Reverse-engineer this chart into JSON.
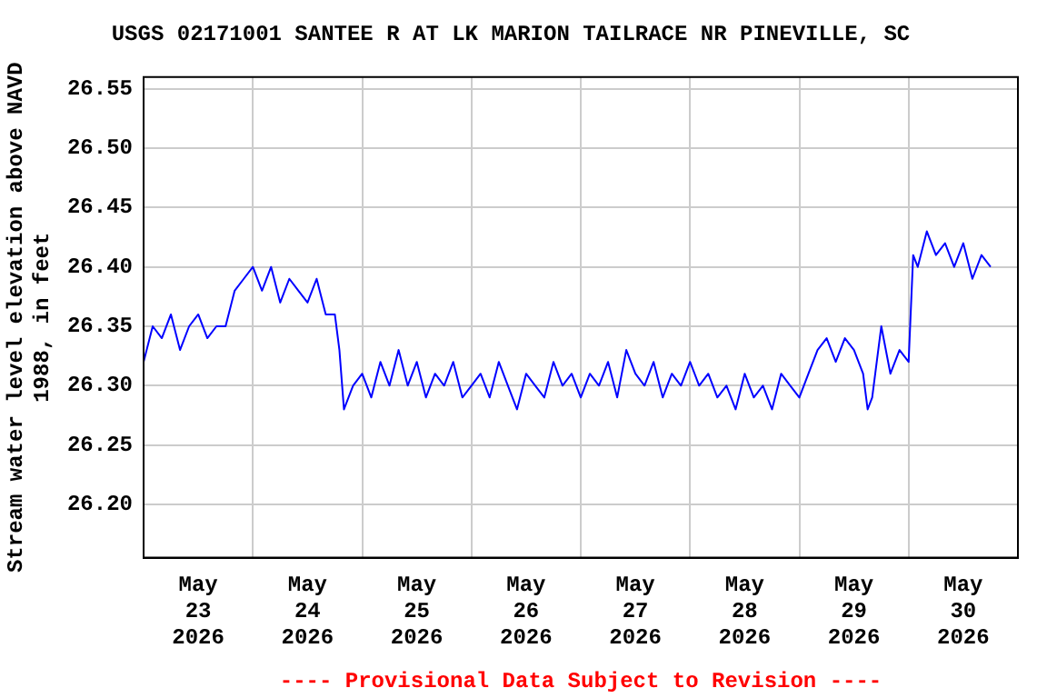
{
  "chart_data": {
    "type": "line",
    "title": "USGS 02171001 SANTEE R AT LK MARION TAILRACE NR PINEVILLE, SC",
    "ylabel": "Stream water level elevation above NAVD\n1988, in feet",
    "annotations": [
      "---- Provisional Data Subject to Revision ----"
    ],
    "x": [
      "2026-05-23T00:00",
      "2026-05-23T02:00",
      "2026-05-23T04:00",
      "2026-05-23T06:00",
      "2026-05-23T08:00",
      "2026-05-23T10:00",
      "2026-05-23T12:00",
      "2026-05-23T14:00",
      "2026-05-23T16:00",
      "2026-05-23T18:00",
      "2026-05-23T20:00",
      "2026-05-23T22:00",
      "2026-05-24T00:00",
      "2026-05-24T02:00",
      "2026-05-24T04:00",
      "2026-05-24T06:00",
      "2026-05-24T08:00",
      "2026-05-24T10:00",
      "2026-05-24T12:00",
      "2026-05-24T14:00",
      "2026-05-24T16:00",
      "2026-05-24T18:00",
      "2026-05-24T19:00",
      "2026-05-24T20:00",
      "2026-05-24T22:00",
      "2026-05-25T00:00",
      "2026-05-25T02:00",
      "2026-05-25T04:00",
      "2026-05-25T06:00",
      "2026-05-25T08:00",
      "2026-05-25T10:00",
      "2026-05-25T12:00",
      "2026-05-25T14:00",
      "2026-05-25T16:00",
      "2026-05-25T18:00",
      "2026-05-25T20:00",
      "2026-05-25T22:00",
      "2026-05-26T00:00",
      "2026-05-26T02:00",
      "2026-05-26T04:00",
      "2026-05-26T06:00",
      "2026-05-26T08:00",
      "2026-05-26T10:00",
      "2026-05-26T12:00",
      "2026-05-26T14:00",
      "2026-05-26T16:00",
      "2026-05-26T18:00",
      "2026-05-26T20:00",
      "2026-05-26T22:00",
      "2026-05-27T00:00",
      "2026-05-27T02:00",
      "2026-05-27T04:00",
      "2026-05-27T06:00",
      "2026-05-27T08:00",
      "2026-05-27T10:00",
      "2026-05-27T12:00",
      "2026-05-27T14:00",
      "2026-05-27T16:00",
      "2026-05-27T18:00",
      "2026-05-27T20:00",
      "2026-05-27T22:00",
      "2026-05-28T00:00",
      "2026-05-28T02:00",
      "2026-05-28T04:00",
      "2026-05-28T06:00",
      "2026-05-28T08:00",
      "2026-05-28T10:00",
      "2026-05-28T12:00",
      "2026-05-28T14:00",
      "2026-05-28T16:00",
      "2026-05-28T18:00",
      "2026-05-28T20:00",
      "2026-05-28T22:00",
      "2026-05-29T00:00",
      "2026-05-29T02:00",
      "2026-05-29T04:00",
      "2026-05-29T06:00",
      "2026-05-29T08:00",
      "2026-05-29T10:00",
      "2026-05-29T12:00",
      "2026-05-29T14:00",
      "2026-05-29T15:00",
      "2026-05-29T16:00",
      "2026-05-29T18:00",
      "2026-05-29T20:00",
      "2026-05-29T22:00",
      "2026-05-30T00:00",
      "2026-05-30T01:00",
      "2026-05-30T02:00",
      "2026-05-30T04:00",
      "2026-05-30T06:00",
      "2026-05-30T08:00",
      "2026-05-30T10:00",
      "2026-05-30T12:00",
      "2026-05-30T14:00",
      "2026-05-30T16:00",
      "2026-05-30T18:00"
    ],
    "series": [
      {
        "color": "#0000ff",
        "values": [
          26.32,
          26.35,
          26.34,
          26.36,
          26.33,
          26.35,
          26.36,
          26.34,
          26.35,
          26.35,
          26.38,
          26.39,
          26.4,
          26.38,
          26.4,
          26.37,
          26.39,
          26.38,
          26.37,
          26.39,
          26.36,
          26.36,
          26.33,
          26.28,
          26.3,
          26.31,
          26.29,
          26.32,
          26.3,
          26.33,
          26.3,
          26.32,
          26.29,
          26.31,
          26.3,
          26.32,
          26.29,
          26.3,
          26.31,
          26.29,
          26.32,
          26.3,
          26.28,
          26.31,
          26.3,
          26.29,
          26.32,
          26.3,
          26.31,
          26.29,
          26.31,
          26.3,
          26.32,
          26.29,
          26.33,
          26.31,
          26.3,
          26.32,
          26.29,
          26.31,
          26.3,
          26.32,
          26.3,
          26.31,
          26.29,
          26.3,
          26.28,
          26.31,
          26.29,
          26.3,
          26.28,
          26.31,
          26.3,
          26.29,
          26.31,
          26.33,
          26.34,
          26.32,
          26.34,
          26.33,
          26.31,
          26.28,
          26.29,
          26.35,
          26.31,
          26.33,
          26.32,
          26.41,
          26.4,
          26.43,
          26.41,
          26.42,
          26.4,
          26.42,
          26.39,
          26.41,
          26.4
        ]
      }
    ],
    "xlim": [
      "2026-05-23T00:00",
      "2026-05-31T00:00"
    ],
    "xticks": [
      {
        "value": "2026-05-23T12:00",
        "label": "May\n23\n2026"
      },
      {
        "value": "2026-05-24T00:00",
        "label": null
      },
      {
        "value": "2026-05-24T12:00",
        "label": "May\n24\n2026"
      },
      {
        "value": "2026-05-25T00:00",
        "label": null
      },
      {
        "value": "2026-05-25T12:00",
        "label": "May\n25\n2026"
      },
      {
        "value": "2026-05-26T00:00",
        "label": null
      },
      {
        "value": "2026-05-26T12:00",
        "label": "May\n26\n2026"
      },
      {
        "value": "2026-05-27T00:00",
        "label": null
      },
      {
        "value": "2026-05-27T12:00",
        "label": "May\n27\n2026"
      },
      {
        "value": "2026-05-28T00:00",
        "label": null
      },
      {
        "value": "2026-05-28T12:00",
        "label": "May\n28\n2026"
      },
      {
        "value": "2026-05-29T00:00",
        "label": null
      },
      {
        "value": "2026-05-29T12:00",
        "label": "May\n29\n2026"
      },
      {
        "value": "2026-05-30T00:00",
        "label": null
      },
      {
        "value": "2026-05-30T12:00",
        "label": "May\n30\n2026"
      }
    ],
    "ylim": [
      26.155,
      26.56
    ],
    "yticks": [
      {
        "value": 26.2,
        "label": "26.20"
      },
      {
        "value": 26.25,
        "label": "26.25"
      },
      {
        "value": 26.3,
        "label": "26.30"
      },
      {
        "value": 26.35,
        "label": "26.35"
      },
      {
        "value": 26.4,
        "label": "26.40"
      },
      {
        "value": 26.45,
        "label": "26.45"
      },
      {
        "value": 26.5,
        "label": "26.50"
      },
      {
        "value": 26.55,
        "label": "26.55"
      }
    ],
    "grid": true,
    "legend": false,
    "marker": "none",
    "line_style": "solid"
  }
}
